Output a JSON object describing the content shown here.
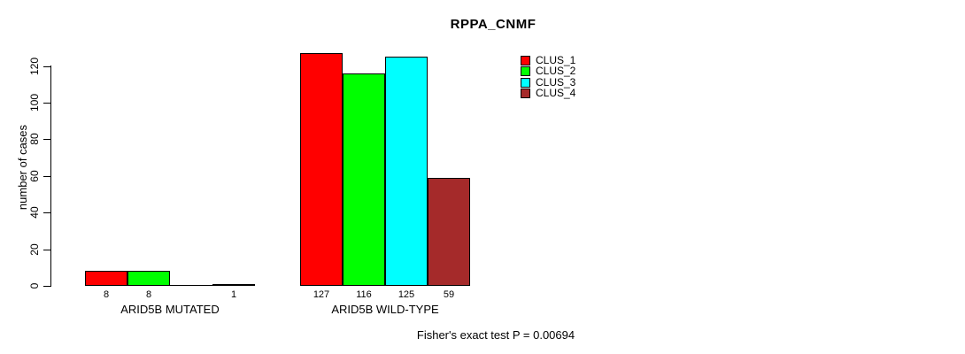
{
  "chart_data": {
    "type": "bar",
    "title": "RPPA_CNMF",
    "xlabel": "",
    "ylabel": "number of cases",
    "ylim": [
      0,
      120
    ],
    "yticks": [
      0,
      20,
      40,
      60,
      80,
      100,
      120
    ],
    "grid": false,
    "legend_position": "top-right",
    "categories": [
      "ARID5B MUTATED",
      "ARID5B WILD-TYPE"
    ],
    "series": [
      {
        "name": "CLUS_1",
        "color": "#FF0000",
        "values": [
          8,
          127
        ]
      },
      {
        "name": "CLUS_2",
        "color": "#00FF00",
        "values": [
          8,
          116
        ]
      },
      {
        "name": "CLUS_3",
        "color": "#00FFFF",
        "values": [
          0,
          125
        ]
      },
      {
        "name": "CLUS_4",
        "color": "#A52A2A",
        "values": [
          1,
          59
        ]
      }
    ],
    "bar_labels": [
      [
        "8",
        "8",
        "",
        "1"
      ],
      [
        "127",
        "116",
        "125",
        "59"
      ]
    ],
    "annotation": "Fisher's exact test P = 0.00694"
  }
}
